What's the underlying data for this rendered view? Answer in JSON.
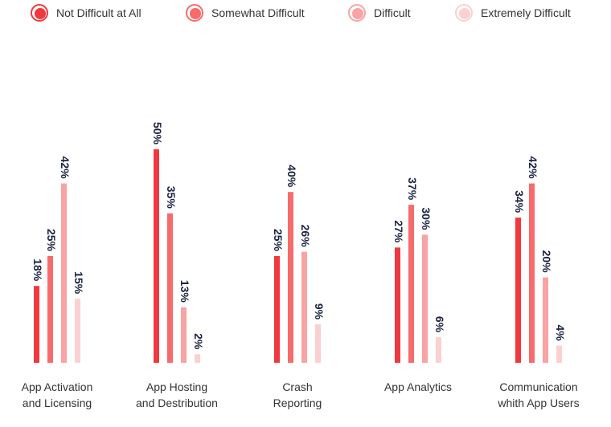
{
  "chart_data": {
    "type": "bar",
    "categories": [
      [
        "App Activation",
        "and Licensing"
      ],
      [
        "App Hosting",
        "and Destribution"
      ],
      [
        "Crash",
        "Reporting"
      ],
      [
        "App Analytics"
      ],
      [
        "Communication",
        "whith App Users"
      ]
    ],
    "series": [
      {
        "name": "Not Difficult at All",
        "color": "#f0393f",
        "values": [
          18,
          50,
          25,
          27,
          34
        ]
      },
      {
        "name": "Somewhat Difficult",
        "color": "#f76b6c",
        "values": [
          25,
          35,
          40,
          37,
          42
        ]
      },
      {
        "name": "Difficult",
        "color": "#f9a3a4",
        "values": [
          42,
          13,
          26,
          30,
          20
        ]
      },
      {
        "name": "Extremely Difficult",
        "color": "#fbd0d1",
        "values": [
          15,
          2,
          9,
          6,
          4
        ]
      }
    ],
    "value_suffix": "%",
    "ylim": [
      0,
      50
    ],
    "legend_position": "top",
    "grid": false,
    "title": "",
    "xlabel": "",
    "ylabel": ""
  }
}
